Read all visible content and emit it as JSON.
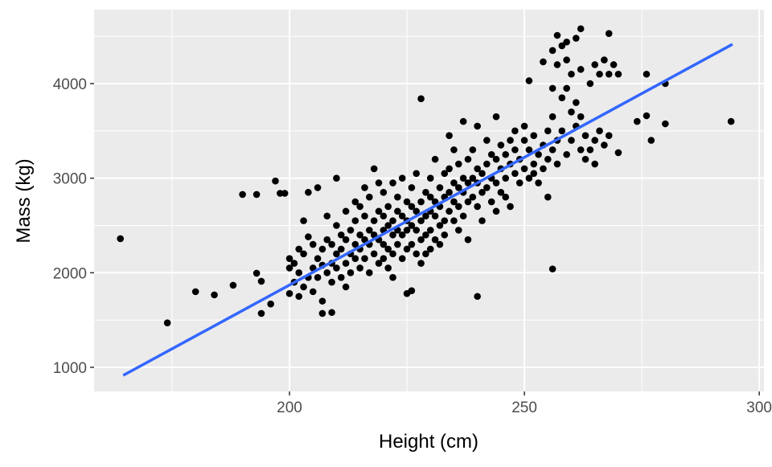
{
  "chart_data": {
    "type": "scatter",
    "title": "",
    "xlabel": "Height (cm)",
    "ylabel": "Mass (kg)",
    "xlim": [
      158.4,
      301
    ],
    "ylim": [
      745,
      4782
    ],
    "x_ticks": [
      200,
      250,
      300
    ],
    "y_ticks": [
      1000,
      2000,
      3000,
      4000
    ],
    "x_tick_labels": [
      "200",
      "250",
      "300"
    ],
    "y_tick_labels": [
      "1000",
      "2000",
      "3000",
      "4000"
    ],
    "grid": true,
    "background": "#EBEBEB",
    "point_color": "#000000",
    "fit_line": {
      "method": "linear",
      "color": "#3366FF",
      "from": [
        164.6,
        915
      ],
      "to": [
        294.3,
        4416
      ]
    },
    "points": [
      [
        164,
        2360
      ],
      [
        174,
        1470
      ],
      [
        180,
        1800
      ],
      [
        184,
        1766
      ],
      [
        188,
        1868
      ],
      [
        190,
        2828
      ],
      [
        193,
        2828
      ],
      [
        197,
        2970
      ],
      [
        198,
        2840
      ],
      [
        199,
        2840
      ],
      [
        193,
        1995
      ],
      [
        194,
        1910
      ],
      [
        196,
        1670
      ],
      [
        194,
        1570
      ],
      [
        228,
        3840
      ],
      [
        251,
        4030
      ],
      [
        256,
        2040
      ],
      [
        294,
        3600
      ],
      [
        280,
        4000
      ],
      [
        280,
        3575
      ],
      [
        276,
        3660
      ],
      [
        277,
        3400
      ],
      [
        274,
        3600
      ],
      [
        276,
        4100
      ],
      [
        257,
        4510
      ],
      [
        262,
        4580
      ],
      [
        268,
        4530
      ],
      [
        261,
        4480
      ],
      [
        259,
        4440
      ],
      [
        258,
        4400
      ],
      [
        256,
        4350
      ],
      [
        254,
        4230
      ],
      [
        240,
        1750
      ],
      [
        226,
        1810
      ],
      [
        207,
        1570
      ],
      [
        209,
        1580
      ],
      [
        200,
        1780
      ],
      [
        200,
        2050
      ],
      [
        200,
        2150
      ],
      [
        201,
        1900
      ],
      [
        201,
        2100
      ],
      [
        202,
        1750
      ],
      [
        202,
        2000
      ],
      [
        202,
        2250
      ],
      [
        203,
        1850
      ],
      [
        203,
        2200
      ],
      [
        203,
        2550
      ],
      [
        204,
        1950
      ],
      [
        204,
        2380
      ],
      [
        204,
        2850
      ],
      [
        205,
        1800
      ],
      [
        205,
        2050
      ],
      [
        205,
        2300
      ],
      [
        206,
        1950
      ],
      [
        206,
        2150
      ],
      [
        206,
        2900
      ],
      [
        207,
        2080
      ],
      [
        207,
        2250
      ],
      [
        207,
        1700
      ],
      [
        208,
        2000
      ],
      [
        208,
        2350
      ],
      [
        208,
        2600
      ],
      [
        209,
        2100
      ],
      [
        209,
        2300
      ],
      [
        209,
        1900
      ],
      [
        210,
        2050
      ],
      [
        210,
        2200
      ],
      [
        210,
        2500
      ],
      [
        210,
        3000
      ],
      [
        211,
        1950
      ],
      [
        211,
        2250
      ],
      [
        211,
        2400
      ],
      [
        212,
        2100
      ],
      [
        212,
        2350
      ],
      [
        212,
        2650
      ],
      [
        212,
        1850
      ],
      [
        213,
        2200
      ],
      [
        213,
        2450
      ],
      [
        213,
        2000
      ],
      [
        214,
        2150
      ],
      [
        214,
        2300
      ],
      [
        214,
        2550
      ],
      [
        214,
        2750
      ],
      [
        215,
        2050
      ],
      [
        215,
        2250
      ],
      [
        215,
        2400
      ],
      [
        215,
        2700
      ],
      [
        216,
        2150
      ],
      [
        216,
        2350
      ],
      [
        216,
        2600
      ],
      [
        216,
        2900
      ],
      [
        217,
        2000
      ],
      [
        217,
        2300
      ],
      [
        217,
        2450
      ],
      [
        217,
        2800
      ],
      [
        218,
        2200
      ],
      [
        218,
        2400
      ],
      [
        218,
        2550
      ],
      [
        218,
        3100
      ],
      [
        219,
        2100
      ],
      [
        219,
        2350
      ],
      [
        219,
        2650
      ],
      [
        219,
        2950
      ],
      [
        220,
        2150
      ],
      [
        220,
        2300
      ],
      [
        220,
        2450
      ],
      [
        220,
        2600
      ],
      [
        220,
        2850
      ],
      [
        221,
        2050
      ],
      [
        221,
        2250
      ],
      [
        221,
        2500
      ],
      [
        221,
        2700
      ],
      [
        222,
        2200
      ],
      [
        222,
        2400
      ],
      [
        222,
        2550
      ],
      [
        222,
        2950
      ],
      [
        222,
        1950
      ],
      [
        223,
        2300
      ],
      [
        223,
        2450
      ],
      [
        223,
        2650
      ],
      [
        223,
        2800
      ],
      [
        224,
        2150
      ],
      [
        224,
        2400
      ],
      [
        224,
        2600
      ],
      [
        224,
        3000
      ],
      [
        225,
        2250
      ],
      [
        225,
        2450
      ],
      [
        225,
        2550
      ],
      [
        225,
        2750
      ],
      [
        225,
        1780
      ],
      [
        226,
        2300
      ],
      [
        226,
        2500
      ],
      [
        226,
        2700
      ],
      [
        226,
        2900
      ],
      [
        227,
        2200
      ],
      [
        227,
        2450
      ],
      [
        227,
        2650
      ],
      [
        227,
        3050
      ],
      [
        228,
        2350
      ],
      [
        228,
        2550
      ],
      [
        228,
        2750
      ],
      [
        228,
        2100
      ],
      [
        229,
        2400
      ],
      [
        229,
        2600
      ],
      [
        229,
        2850
      ],
      [
        229,
        2200
      ],
      [
        230,
        2450
      ],
      [
        230,
        2650
      ],
      [
        230,
        2800
      ],
      [
        230,
        3000
      ],
      [
        230,
        2250
      ],
      [
        231,
        2350
      ],
      [
        231,
        2600
      ],
      [
        231,
        2750
      ],
      [
        231,
        3200
      ],
      [
        232,
        2500
      ],
      [
        232,
        2700
      ],
      [
        232,
        2900
      ],
      [
        232,
        2300
      ],
      [
        233,
        2550
      ],
      [
        233,
        2800
      ],
      [
        233,
        3050
      ],
      [
        233,
        2400
      ],
      [
        234,
        2650
      ],
      [
        234,
        2850
      ],
      [
        234,
        3100
      ],
      [
        234,
        3450
      ],
      [
        235,
        2550
      ],
      [
        235,
        2750
      ],
      [
        235,
        2950
      ],
      [
        235,
        3300
      ],
      [
        236,
        2700
      ],
      [
        236,
        2900
      ],
      [
        236,
        3150
      ],
      [
        236,
        2450
      ],
      [
        237,
        2600
      ],
      [
        237,
        2850
      ],
      [
        237,
        3000
      ],
      [
        237,
        3600
      ],
      [
        238,
        2750
      ],
      [
        238,
        2950
      ],
      [
        238,
        3200
      ],
      [
        238,
        2350
      ],
      [
        239,
        2800
      ],
      [
        239,
        3000
      ],
      [
        239,
        3300
      ],
      [
        240,
        2700
      ],
      [
        240,
        2950
      ],
      [
        240,
        3100
      ],
      [
        240,
        3550
      ],
      [
        241,
        2850
      ],
      [
        241,
        3050
      ],
      [
        241,
        2550
      ],
      [
        242,
        2900
      ],
      [
        242,
        3150
      ],
      [
        242,
        3400
      ],
      [
        243,
        2750
      ],
      [
        243,
        3000
      ],
      [
        243,
        3250
      ],
      [
        244,
        2950
      ],
      [
        244,
        3200
      ],
      [
        244,
        3650
      ],
      [
        244,
        2650
      ],
      [
        245,
        2850
      ],
      [
        245,
        3100
      ],
      [
        245,
        3350
      ],
      [
        246,
        3000
      ],
      [
        246,
        3250
      ],
      [
        246,
        2800
      ],
      [
        247,
        3150
      ],
      [
        247,
        3400
      ],
      [
        247,
        2700
      ],
      [
        248,
        3050
      ],
      [
        248,
        3300
      ],
      [
        248,
        3500
      ],
      [
        249,
        2950
      ],
      [
        249,
        3200
      ],
      [
        250,
        3100
      ],
      [
        250,
        3400
      ],
      [
        250,
        3550
      ],
      [
        251,
        3000
      ],
      [
        251,
        3300
      ],
      [
        252,
        3150
      ],
      [
        252,
        3450
      ],
      [
        252,
        3050
      ],
      [
        253,
        3250
      ],
      [
        253,
        2950
      ],
      [
        254,
        3350
      ],
      [
        254,
        3100
      ],
      [
        255,
        3200
      ],
      [
        255,
        3500
      ],
      [
        255,
        2800
      ],
      [
        256,
        3300
      ],
      [
        256,
        3950
      ],
      [
        256,
        3650
      ],
      [
        257,
        3400
      ],
      [
        257,
        3150
      ],
      [
        257,
        4200
      ],
      [
        258,
        3500
      ],
      [
        258,
        3850
      ],
      [
        259,
        3250
      ],
      [
        259,
        3950
      ],
      [
        259,
        4250
      ],
      [
        260,
        3700
      ],
      [
        260,
        3400
      ],
      [
        260,
        4100
      ],
      [
        261,
        3550
      ],
      [
        261,
        3800
      ],
      [
        262,
        3650
      ],
      [
        262,
        3300
      ],
      [
        262,
        4150
      ],
      [
        263,
        3200
      ],
      [
        263,
        3450
      ],
      [
        264,
        3300
      ],
      [
        264,
        4000
      ],
      [
        265,
        3150
      ],
      [
        265,
        3400
      ],
      [
        265,
        4200
      ],
      [
        266,
        3500
      ],
      [
        266,
        4100
      ],
      [
        267,
        3350
      ],
      [
        267,
        4250
      ],
      [
        268,
        3450
      ],
      [
        268,
        4100
      ],
      [
        269,
        4200
      ],
      [
        270,
        3270
      ],
      [
        270,
        4100
      ]
    ]
  }
}
